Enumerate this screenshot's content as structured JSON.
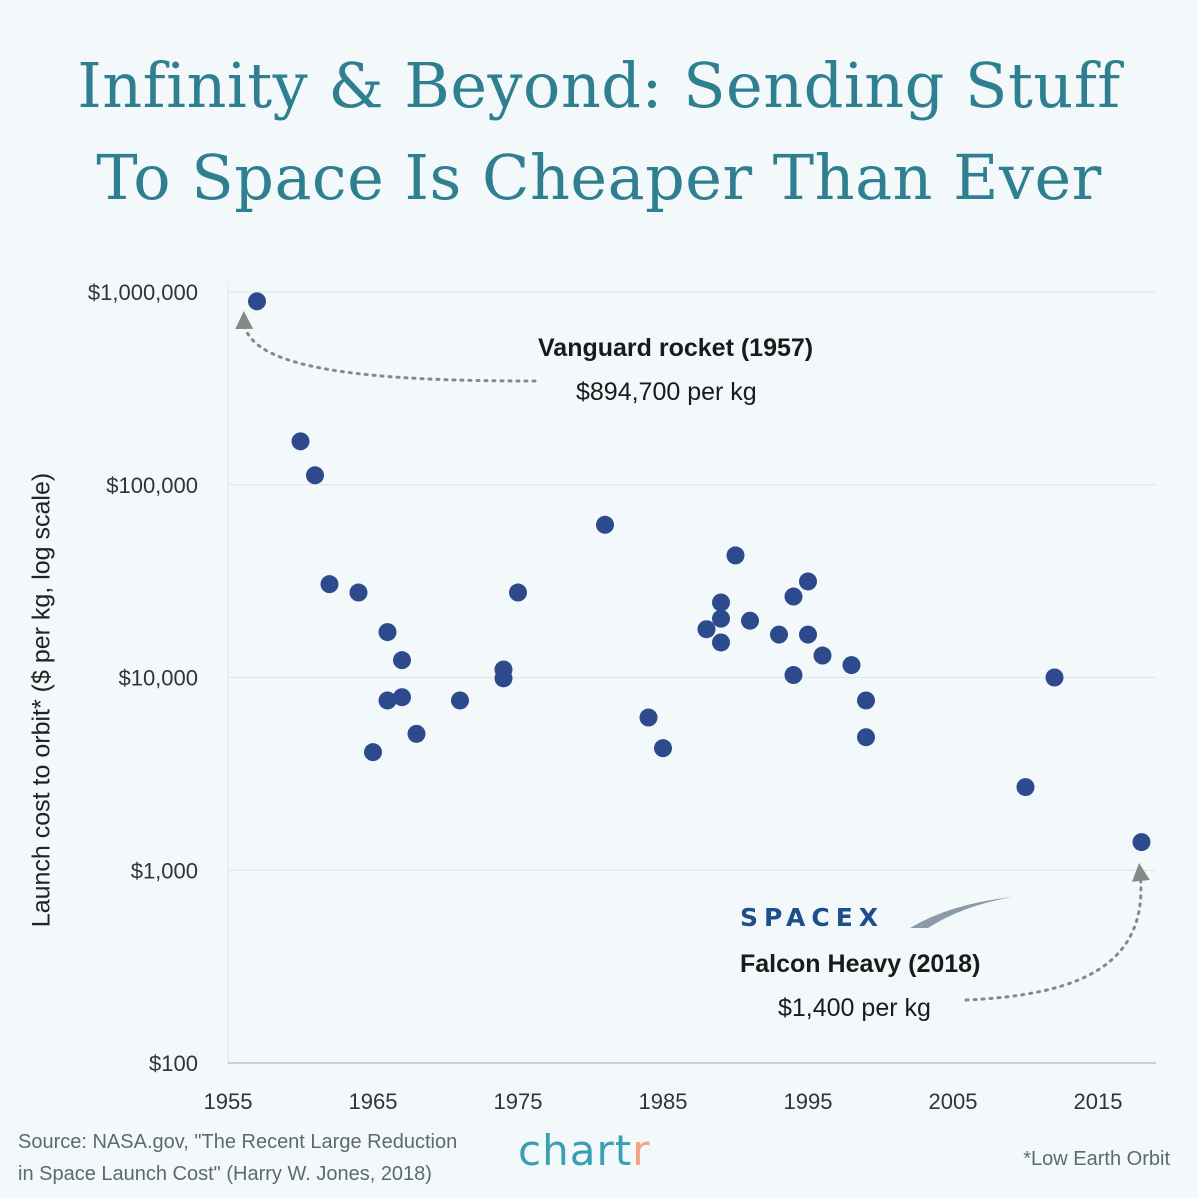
{
  "title": {
    "line1": "Infinity & Beyond: Sending Stuff",
    "line2": "To Space Is Cheaper Than Ever"
  },
  "annotations": {
    "vanguard_title": "Vanguard rocket (1957)",
    "vanguard_value": "$894,700 per kg",
    "spacex_logo": "SPACEX",
    "falcon_title": "Falcon Heavy (2018)",
    "falcon_value": "$1,400 per kg"
  },
  "source": {
    "line1": "Source: NASA.gov, \"The Recent Large Reduction",
    "line2": "in Space Launch Cost\" (Harry W. Jones, 2018)"
  },
  "brand": {
    "main": "chart",
    "accent": "r"
  },
  "footnote": "*Low Earth Orbit",
  "colors": {
    "title": "#2e7f90",
    "point": "#2c4a8c",
    "grid": "#dde6ea",
    "arrow": "#888888",
    "brand": "#3a9fb0",
    "brand_accent": "#f0a37c",
    "spacex": "#1d4f8c"
  },
  "chart_data": {
    "type": "scatter",
    "ylabel": "Launch cost to orbit* ($ per kg, log scale)",
    "xlabel": "",
    "xlim": [
      1955,
      2019
    ],
    "ylim": [
      100,
      1000000
    ],
    "yscale": "log",
    "xticks": [
      1955,
      1965,
      1975,
      1985,
      1995,
      2005,
      2015
    ],
    "xtick_labels": [
      "1955",
      "1965",
      "1975",
      "1985",
      "1995",
      "2005",
      "2015"
    ],
    "yticks": [
      100,
      1000,
      10000,
      100000,
      1000000
    ],
    "ytick_labels": [
      "$100",
      "$1,000",
      "$10,000",
      "$100,000",
      "$1,000,000"
    ],
    "grid": "horizontal",
    "points": [
      {
        "x": 1957,
        "y": 894700
      },
      {
        "x": 1960,
        "y": 168000
      },
      {
        "x": 1961,
        "y": 112000
      },
      {
        "x": 1962,
        "y": 30500
      },
      {
        "x": 1964,
        "y": 27600
      },
      {
        "x": 1965,
        "y": 4100
      },
      {
        "x": 1966,
        "y": 17200
      },
      {
        "x": 1966,
        "y": 7600
      },
      {
        "x": 1967,
        "y": 12300
      },
      {
        "x": 1967,
        "y": 7900
      },
      {
        "x": 1968,
        "y": 5100
      },
      {
        "x": 1971,
        "y": 7600
      },
      {
        "x": 1974,
        "y": 11000
      },
      {
        "x": 1974,
        "y": 9900
      },
      {
        "x": 1975,
        "y": 27600
      },
      {
        "x": 1981,
        "y": 62000
      },
      {
        "x": 1984,
        "y": 6200
      },
      {
        "x": 1985,
        "y": 4300
      },
      {
        "x": 1988,
        "y": 17800
      },
      {
        "x": 1989,
        "y": 24500
      },
      {
        "x": 1989,
        "y": 20200
      },
      {
        "x": 1989,
        "y": 15200
      },
      {
        "x": 1990,
        "y": 43000
      },
      {
        "x": 1991,
        "y": 19700
      },
      {
        "x": 1993,
        "y": 16700
      },
      {
        "x": 1994,
        "y": 26300
      },
      {
        "x": 1994,
        "y": 10300
      },
      {
        "x": 1995,
        "y": 31500
      },
      {
        "x": 1995,
        "y": 16700
      },
      {
        "x": 1996,
        "y": 13000
      },
      {
        "x": 1998,
        "y": 11600
      },
      {
        "x": 1999,
        "y": 7600
      },
      {
        "x": 1999,
        "y": 4900
      },
      {
        "x": 2010,
        "y": 2700
      },
      {
        "x": 2012,
        "y": 10000
      },
      {
        "x": 2018,
        "y": 1400
      }
    ]
  }
}
